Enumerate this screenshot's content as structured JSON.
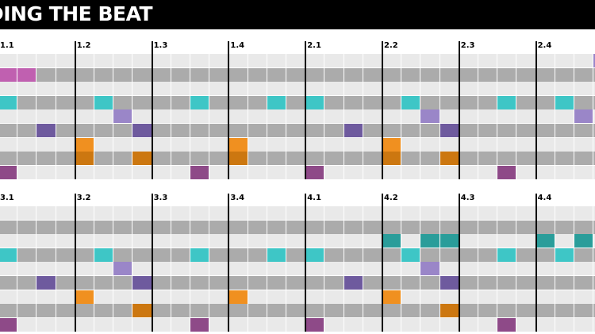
{
  "title": "DING THE BEAT",
  "sections": [
    {
      "measure_labels": [
        "1.1",
        "1.2",
        "1.3",
        "1.4",
        "2.1",
        "2.2",
        "2.3",
        "2.4"
      ],
      "rows": [
        {
          "notes": [
            31
          ]
        },
        {
          "notes": [
            0,
            1
          ]
        },
        {
          "notes": []
        },
        {
          "notes": [
            0,
            5,
            10,
            14,
            16,
            21,
            26,
            29
          ]
        },
        {
          "notes": [
            6,
            22,
            30
          ]
        },
        {
          "notes": [
            2,
            7,
            18,
            23
          ]
        },
        {
          "notes": [
            4,
            12,
            20
          ]
        },
        {
          "notes": [
            4,
            7,
            12,
            20,
            23
          ]
        },
        {
          "notes": [
            0,
            10,
            16,
            26
          ]
        }
      ]
    },
    {
      "measure_labels": [
        "3.1",
        "3.2",
        "3.3",
        "3.4",
        "4.1",
        "4.2",
        "4.3",
        "4.4"
      ],
      "rows": [
        {
          "notes": []
        },
        {
          "notes": []
        },
        {
          "notes": [
            20,
            22,
            23,
            28,
            30
          ]
        },
        {
          "notes": [
            0,
            5,
            10,
            14,
            16,
            21,
            26,
            29
          ]
        },
        {
          "notes": [
            6,
            22
          ]
        },
        {
          "notes": [
            2,
            7,
            18,
            23
          ]
        },
        {
          "notes": [
            4,
            12,
            20
          ]
        },
        {
          "notes": [
            7,
            23
          ]
        },
        {
          "notes": [
            0,
            10,
            16,
            26
          ]
        }
      ]
    }
  ],
  "row_colors": [
    "#9a86c8",
    "#c060b0",
    "#2a9d9a",
    "#3ec6c6",
    "#9a86c8",
    "#6e5a9e",
    "#f09020",
    "#cc7710",
    "#8e4a88"
  ],
  "lane_colors": {
    "light": "#e9e9e9",
    "dark": "#ababab"
  }
}
